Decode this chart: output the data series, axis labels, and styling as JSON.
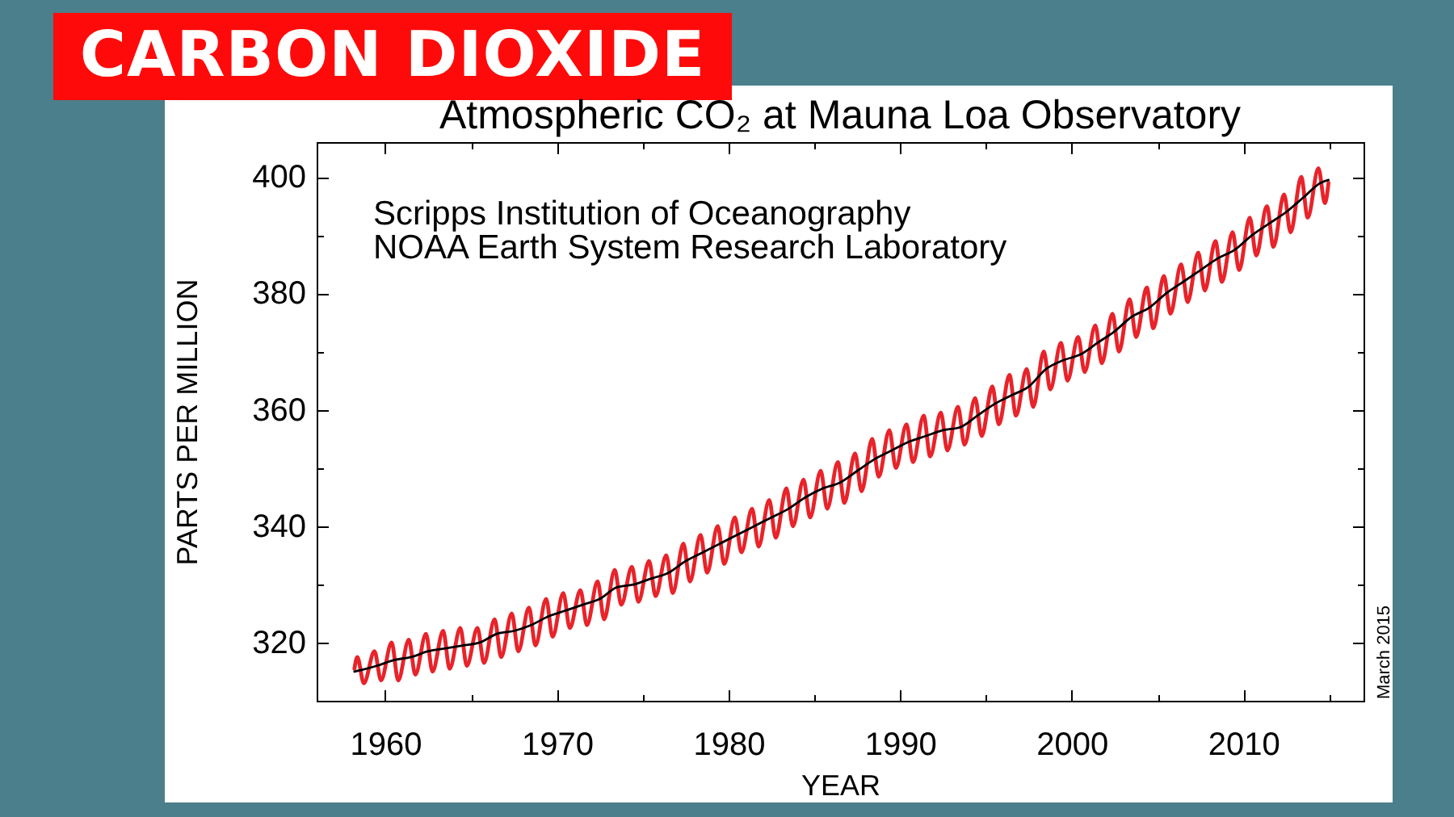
{
  "chart_data": {
    "type": "line",
    "title": "CARBON DIOXIDE",
    "subtitle": "Atmospheric CO₂ at Mauna Loa Observatory",
    "xlabel": "YEAR",
    "ylabel": "PARTS PER MILLION",
    "annotations": [
      "Scripps Institution of Oceanography",
      "NOAA Earth System Research Laboratory",
      "March 2015"
    ],
    "series": [
      {
        "color": "#e8232a",
        "x": [
          1958.2,
          1958.37,
          1958.75,
          1959.37,
          1959.75,
          1960.37,
          1960.75,
          1961.37,
          1961.75,
          1962.37,
          1962.75,
          1963.37,
          1963.75,
          1964.37,
          1964.75,
          1965.37,
          1965.75,
          1966.37,
          1966.75,
          1967.37,
          1967.75,
          1968.37,
          1968.75,
          1969.37,
          1969.75,
          1970.37,
          1970.75,
          1971.37,
          1971.75,
          1972.37,
          1972.75,
          1973.37,
          1973.75,
          1974.37,
          1974.75,
          1975.37,
          1975.75,
          1976.37,
          1976.75,
          1977.37,
          1977.75,
          1978.37,
          1978.75,
          1979.37,
          1979.75,
          1980.37,
          1980.75,
          1981.37,
          1981.75,
          1982.37,
          1982.75,
          1983.37,
          1983.75,
          1984.37,
          1984.75,
          1985.37,
          1985.75,
          1986.37,
          1986.75,
          1987.37,
          1987.75,
          1988.37,
          1988.75,
          1989.37,
          1989.75,
          1990.37,
          1990.75,
          1991.37,
          1991.75,
          1992.37,
          1992.75,
          1993.37,
          1993.75,
          1994.37,
          1994.75,
          1995.37,
          1995.75,
          1996.37,
          1996.75,
          1997.37,
          1997.75,
          1998.37,
          1998.75,
          1999.37,
          1999.75,
          2000.37,
          2000.75,
          2001.37,
          2001.75,
          2002.37,
          2002.75,
          2003.37,
          2003.75,
          2004.37,
          2004.75,
          2005.37,
          2005.75,
          2006.37,
          2006.75,
          2007.37,
          2007.75,
          2008.37,
          2008.75,
          2009.37,
          2009.75,
          2010.37,
          2010.75,
          2011.37,
          2011.75,
          2012.37,
          2012.75,
          2013.37,
          2013.75,
          2014.37,
          2014.75,
          2014.96
        ],
        "values": [
          315.5,
          317.5,
          313.0,
          318.5,
          313.5,
          320.0,
          313.5,
          320.5,
          314.5,
          321.5,
          315.0,
          322.0,
          315.5,
          322.5,
          316.0,
          322.5,
          316.5,
          324.0,
          317.5,
          325.0,
          318.5,
          326.0,
          319.5,
          327.5,
          321.0,
          328.5,
          322.5,
          329.0,
          323.0,
          330.5,
          324.0,
          332.5,
          326.5,
          333.0,
          327.0,
          334.0,
          328.0,
          335.0,
          328.5,
          337.0,
          330.5,
          338.5,
          332.0,
          340.0,
          333.5,
          341.5,
          335.5,
          343.0,
          336.5,
          344.5,
          338.0,
          346.5,
          340.0,
          348.0,
          341.5,
          349.5,
          343.0,
          351.0,
          344.0,
          352.5,
          346.0,
          355.0,
          348.5,
          356.5,
          350.0,
          357.5,
          351.0,
          359.0,
          352.0,
          359.5,
          353.0,
          360.5,
          354.0,
          362.0,
          355.5,
          364.0,
          357.5,
          366.0,
          359.0,
          367.0,
          360.5,
          370.0,
          363.5,
          371.5,
          365.0,
          372.5,
          366.5,
          374.5,
          368.0,
          376.5,
          370.0,
          379.0,
          372.5,
          381.0,
          374.0,
          383.0,
          376.5,
          385.0,
          378.5,
          387.0,
          380.5,
          389.0,
          382.0,
          390.5,
          384.0,
          393.0,
          386.5,
          395.0,
          388.0,
          397.0,
          390.5,
          400.0,
          393.0,
          401.5,
          395.5,
          399.0
        ]
      },
      {
        "color": "#000000",
        "x": [
          1958.2,
          1959.5,
          1960.5,
          1961.5,
          1962.5,
          1963.5,
          1964.5,
          1965.5,
          1966.5,
          1967.5,
          1968.5,
          1969.5,
          1970.5,
          1971.5,
          1972.5,
          1973.5,
          1974.5,
          1975.5,
          1976.5,
          1977.5,
          1978.5,
          1979.5,
          1980.5,
          1981.5,
          1982.5,
          1983.5,
          1984.5,
          1985.5,
          1986.5,
          1987.5,
          1988.5,
          1989.5,
          1990.5,
          1991.5,
          1992.5,
          1993.5,
          1994.5,
          1995.5,
          1996.5,
          1997.5,
          1998.5,
          1999.5,
          2000.5,
          2001.5,
          2002.5,
          2003.5,
          2004.5,
          2005.5,
          2006.5,
          2007.5,
          2008.5,
          2009.5,
          2010.5,
          2011.5,
          2012.5,
          2013.5,
          2014.5,
          2014.96
        ],
        "values": [
          315.0,
          316.0,
          317.0,
          317.5,
          318.5,
          319.0,
          319.5,
          320.0,
          321.5,
          322.0,
          323.0,
          324.5,
          325.5,
          326.5,
          327.5,
          329.5,
          330.0,
          331.0,
          332.0,
          334.0,
          335.5,
          337.0,
          338.5,
          340.0,
          341.5,
          343.0,
          345.0,
          346.5,
          347.5,
          349.5,
          351.5,
          353.0,
          354.5,
          355.5,
          356.5,
          357.0,
          359.0,
          361.0,
          362.5,
          364.0,
          367.0,
          368.5,
          369.5,
          371.5,
          373.5,
          376.0,
          377.5,
          380.0,
          382.0,
          384.0,
          386.0,
          387.5,
          390.0,
          392.0,
          394.0,
          396.5,
          399.0,
          399.5
        ]
      }
    ],
    "xlim": [
      1956,
      2017
    ],
    "xticks": [
      1960,
      {
        "value": 1965,
        "label": null
      },
      1970,
      {
        "value": 1975,
        "label": null
      },
      1980,
      {
        "value": 1985,
        "label": null
      },
      1990,
      {
        "value": 1995,
        "label": null
      },
      2000,
      {
        "value": 2005,
        "label": null
      },
      2010,
      {
        "value": 2015,
        "label": null
      }
    ],
    "ylim": [
      310,
      406
    ],
    "yticks": [
      320,
      {
        "value": 330,
        "label": null
      },
      340,
      {
        "value": 350,
        "label": null
      },
      360,
      {
        "value": 370,
        "label": null
      },
      380,
      {
        "value": 390,
        "label": null
      },
      400
    ],
    "grid": false
  }
}
